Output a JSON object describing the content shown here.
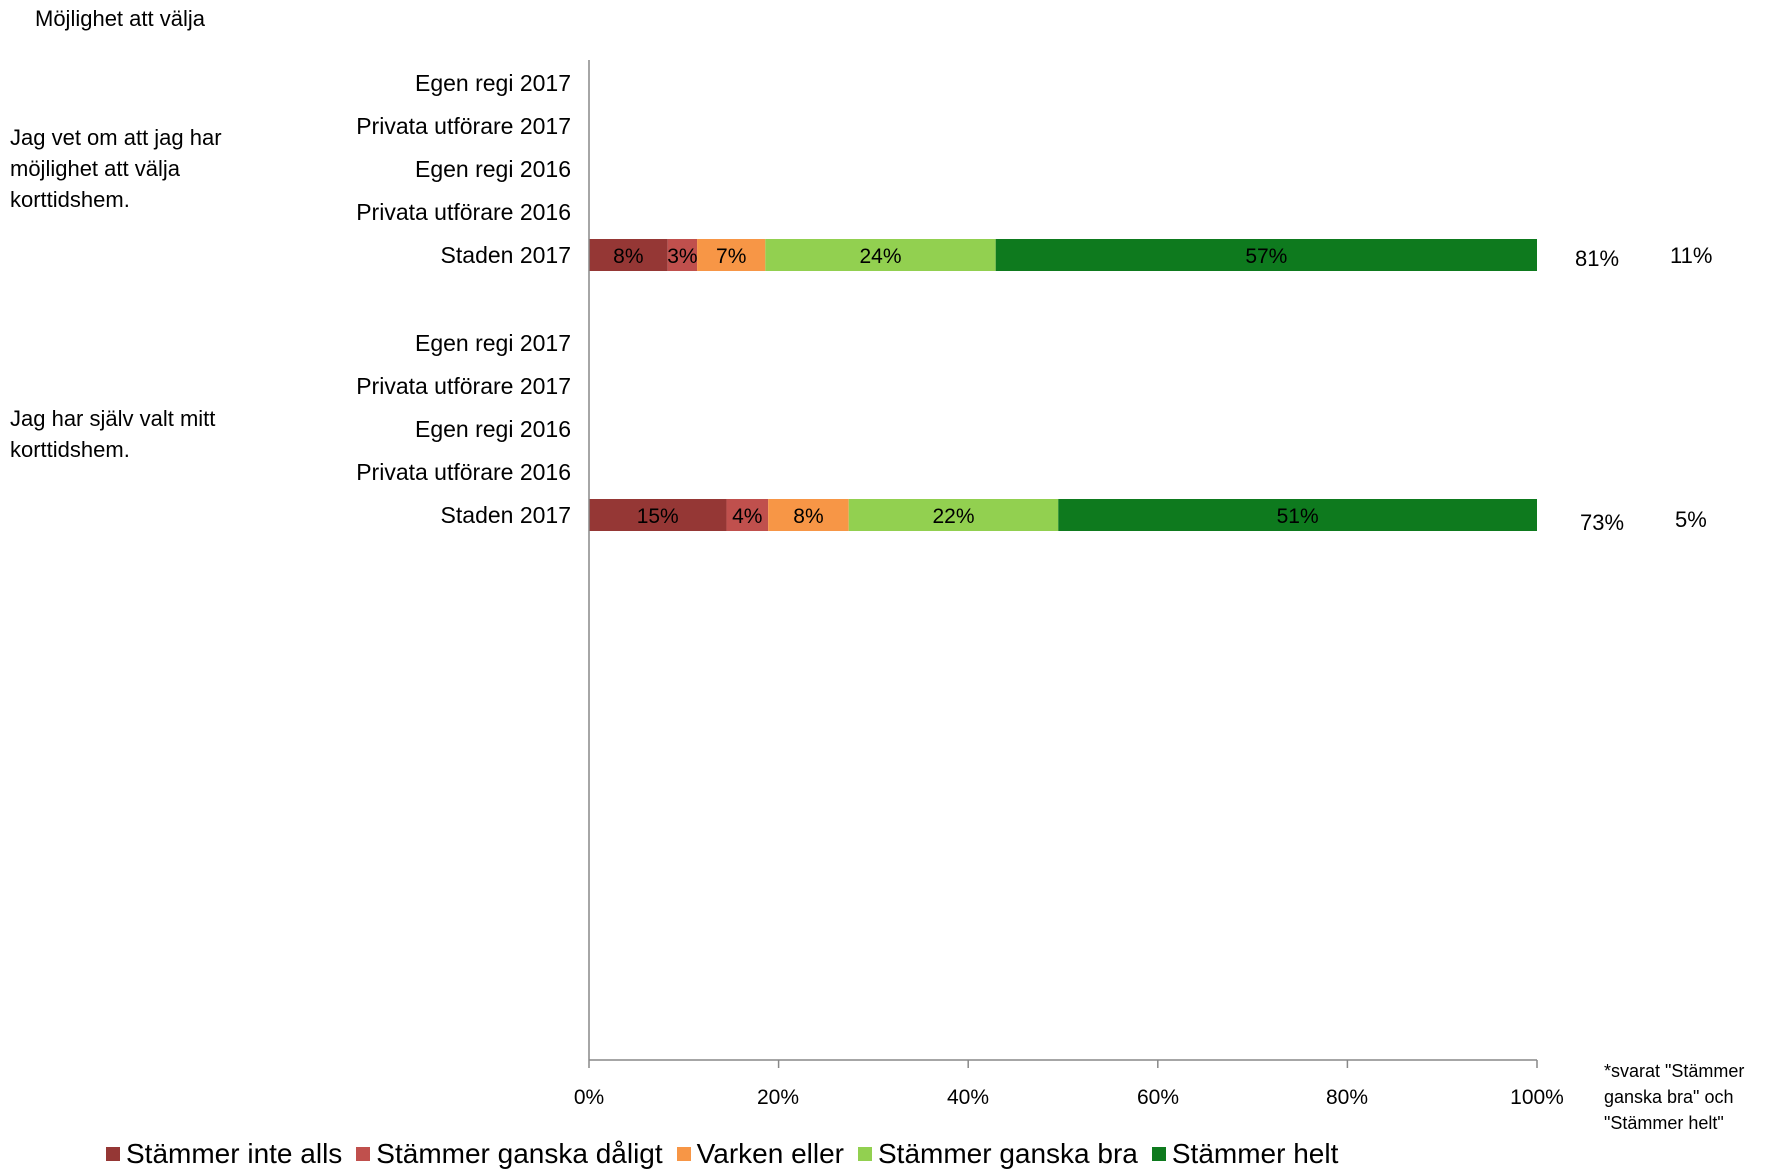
{
  "title": "Möjlighet att välja",
  "questions": [
    {
      "label": "Jag vet om att jag har möjlighet att välja korttidshem."
    },
    {
      "label": "Jag har själv valt mitt korttidshem."
    }
  ],
  "row_labels": [
    "Egen regi 2017",
    "Privata utförare 2017",
    "Egen regi 2016",
    "Privata utförare 2016",
    "Staden 2017"
  ],
  "side_values": [
    {
      "a": "81%",
      "b": "11%"
    },
    {
      "a": "73%",
      "b": "5%"
    }
  ],
  "footnote": "*svarat \"Stämmer ganska bra\" och \"Stämmer helt\"",
  "colors": {
    "Stämmer inte alls": "#953735",
    "Stämmer ganska dåligt": "#C0504D",
    "Varken eller": "#F79646",
    "Stämmer ganska bra": "#92D050",
    "Stämmer helt": "#0E7A1E"
  },
  "chart_data": {
    "type": "bar",
    "orientation": "horizontal",
    "stacked": true,
    "xlim": [
      0,
      1
    ],
    "xticks": [
      "0%",
      "20%",
      "40%",
      "60%",
      "80%",
      "100%"
    ],
    "legend_position": "bottom",
    "legend": [
      "Stämmer inte alls",
      "Stämmer ganska dåligt",
      "Varken eller",
      "Stämmer ganska bra",
      "Stämmer helt"
    ],
    "groups": [
      {
        "question": "Jag vet om att jag har möjlighet att välja korttidshem.",
        "categories": [
          "Egen regi 2017",
          "Privata utförare 2017",
          "Egen regi 2016",
          "Privata utförare 2016",
          "Staden 2017"
        ],
        "bars": [
          null,
          null,
          null,
          null,
          {
            "values": [
              0.08,
              0.03,
              0.07,
              0.24,
              0.57
            ],
            "labels": [
              "8%",
              "3%",
              "7%",
              "24%",
              "57%"
            ],
            "bounds": [
              0,
              0.083,
              0.114,
              0.186,
              0.429,
              1.0
            ]
          }
        ]
      },
      {
        "question": "Jag har själv valt mitt korttidshem.",
        "categories": [
          "Egen regi 2017",
          "Privata utförare 2017",
          "Egen regi 2016",
          "Privata utförare 2016",
          "Staden 2017"
        ],
        "bars": [
          null,
          null,
          null,
          null,
          {
            "values": [
              0.15,
              0.04,
              0.08,
              0.22,
              0.51
            ],
            "labels": [
              "15%",
              "4%",
              "8%",
              "22%",
              "51%"
            ],
            "bounds": [
              0,
              0.145,
              0.189,
              0.274,
              0.495,
              1.0
            ]
          }
        ]
      }
    ]
  }
}
